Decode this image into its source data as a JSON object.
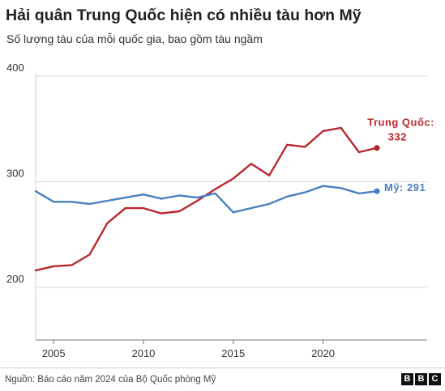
{
  "title": "Hải quân Trung Quốc hiện có nhiều tàu hơn Mỹ",
  "subtitle": "Số lượng tàu của mỗi quốc gia, bao gồm tàu ngầm",
  "source": "Nguồn: Báo cáo năm 2024 của Bộ Quốc phòng Mỹ",
  "logo": [
    "B",
    "B",
    "C"
  ],
  "chart_data": {
    "type": "line",
    "title": "Hải quân Trung Quốc hiện có nhiều tàu hơn Mỹ",
    "subtitle": "Số lượng tàu của mỗi quốc gia, bao gồm tàu ngầm",
    "xlabel": "",
    "ylabel": "",
    "x": [
      2004,
      2005,
      2006,
      2007,
      2008,
      2009,
      2010,
      2011,
      2012,
      2013,
      2014,
      2015,
      2016,
      2017,
      2018,
      2019,
      2020,
      2021,
      2022,
      2023
    ],
    "xlim": [
      2004,
      2024.5
    ],
    "ylim": [
      200,
      400
    ],
    "xticks": [
      2005,
      2010,
      2015,
      2020
    ],
    "yticks": [
      200,
      300,
      400
    ],
    "grid": "horizontal",
    "series": [
      {
        "name": "Trung Quốc",
        "label": "Trung Quốc:",
        "end_value_label": "332",
        "color": "#b8282e",
        "values": [
          216,
          220,
          221,
          231,
          261,
          275,
          275,
          270,
          272,
          282,
          293,
          303,
          317,
          306,
          335,
          333,
          348,
          351,
          328,
          332
        ]
      },
      {
        "name": "Mỹ",
        "label": "Mỹ: 291",
        "color": "#4a80c0",
        "values": [
          291,
          281,
          281,
          279,
          282,
          285,
          288,
          284,
          287,
          285,
          289,
          271,
          275,
          279,
          286,
          290,
          296,
          294,
          289,
          291
        ]
      }
    ]
  }
}
